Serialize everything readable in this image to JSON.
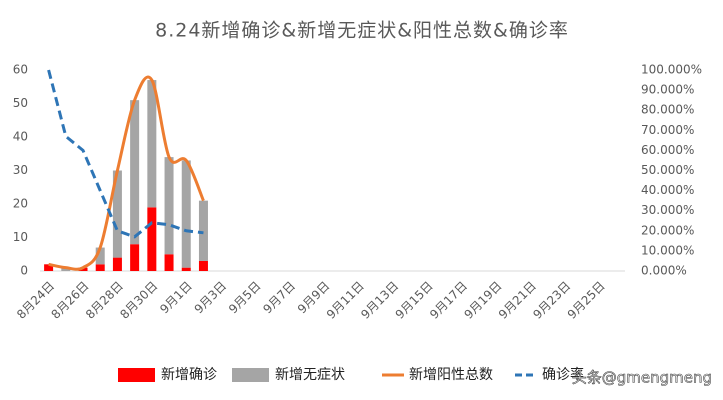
{
  "chart_data": {
    "type": "bar",
    "stacked": true,
    "title": "8.24新增确诊&新增无症状&阳性总数&确诊率",
    "watermark": "头条@gmengmeng",
    "categories": [
      "8月24日",
      null,
      "8月26日",
      null,
      "8月28日",
      null,
      "8月30日",
      null,
      "9月1日",
      null,
      "9月3日",
      null,
      "9月5日",
      null,
      "9月7日",
      null,
      "9月9日",
      null,
      "9月11日",
      null,
      "9月13日",
      null,
      "9月15日",
      null,
      "9月17日",
      null,
      "9月19日",
      null,
      "9月21日",
      null,
      "9月23日",
      null,
      "9月25日",
      null
    ],
    "series": [
      {
        "name": "新增确诊",
        "type": "bar",
        "color": "#ff0000",
        "values": [
          2,
          0,
          1,
          2,
          4,
          8,
          19,
          5,
          1,
          3,
          null,
          null,
          null,
          null,
          null,
          null,
          null,
          null,
          null,
          null,
          null,
          null,
          null,
          null,
          null,
          null,
          null,
          null,
          null,
          null,
          null,
          null,
          null,
          null
        ]
      },
      {
        "name": "新增无症状",
        "type": "bar",
        "color": "#a5a5a5",
        "values": [
          0,
          1,
          0,
          5,
          26,
          43,
          38,
          29,
          32,
          18,
          null,
          null,
          null,
          null,
          null,
          null,
          null,
          null,
          null,
          null,
          null,
          null,
          null,
          null,
          null,
          null,
          null,
          null,
          null,
          null,
          null,
          null,
          null,
          null
        ]
      },
      {
        "name": "新增阳性总数",
        "type": "line",
        "smooth": true,
        "color": "#ed7d31",
        "values": [
          2,
          1,
          1,
          7,
          30,
          51,
          57,
          34,
          33,
          21,
          null,
          null,
          null,
          null,
          null,
          null,
          null,
          null,
          null,
          null,
          null,
          null,
          null,
          null,
          null,
          null,
          null,
          null,
          null,
          null,
          null,
          null,
          null,
          null
        ]
      },
      {
        "name": "确诊率",
        "type": "line",
        "dashed": true,
        "axis": "y2",
        "color": "#2e75b6",
        "values": [
          100,
          67,
          60,
          40,
          20,
          17,
          24,
          23,
          20,
          19,
          null,
          null,
          null,
          null,
          null,
          null,
          null,
          null,
          null,
          null,
          null,
          null,
          null,
          null,
          null,
          null,
          null,
          null,
          null,
          null,
          null,
          null,
          null,
          null
        ]
      }
    ],
    "ylim": [
      0,
      60
    ],
    "yticks": [
      0,
      10,
      20,
      30,
      40,
      50,
      60
    ],
    "y2lim": [
      0,
      100
    ],
    "y2ticks": [
      {
        "value": 0,
        "label": "0.000%"
      },
      {
        "value": 10,
        "label": "10.000%"
      },
      {
        "value": 20,
        "label": "20.000%"
      },
      {
        "value": 30,
        "label": "30.000%"
      },
      {
        "value": 40,
        "label": "40.000%"
      },
      {
        "value": 50,
        "label": "50.000%"
      },
      {
        "value": 60,
        "label": "60.000%"
      },
      {
        "value": 70,
        "label": "70.000%"
      },
      {
        "value": 80,
        "label": "80.000%"
      },
      {
        "value": 90,
        "label": "90.000%"
      },
      {
        "value": 100,
        "label": "100.000%"
      }
    ],
    "legend": "bottom",
    "grid": false
  }
}
